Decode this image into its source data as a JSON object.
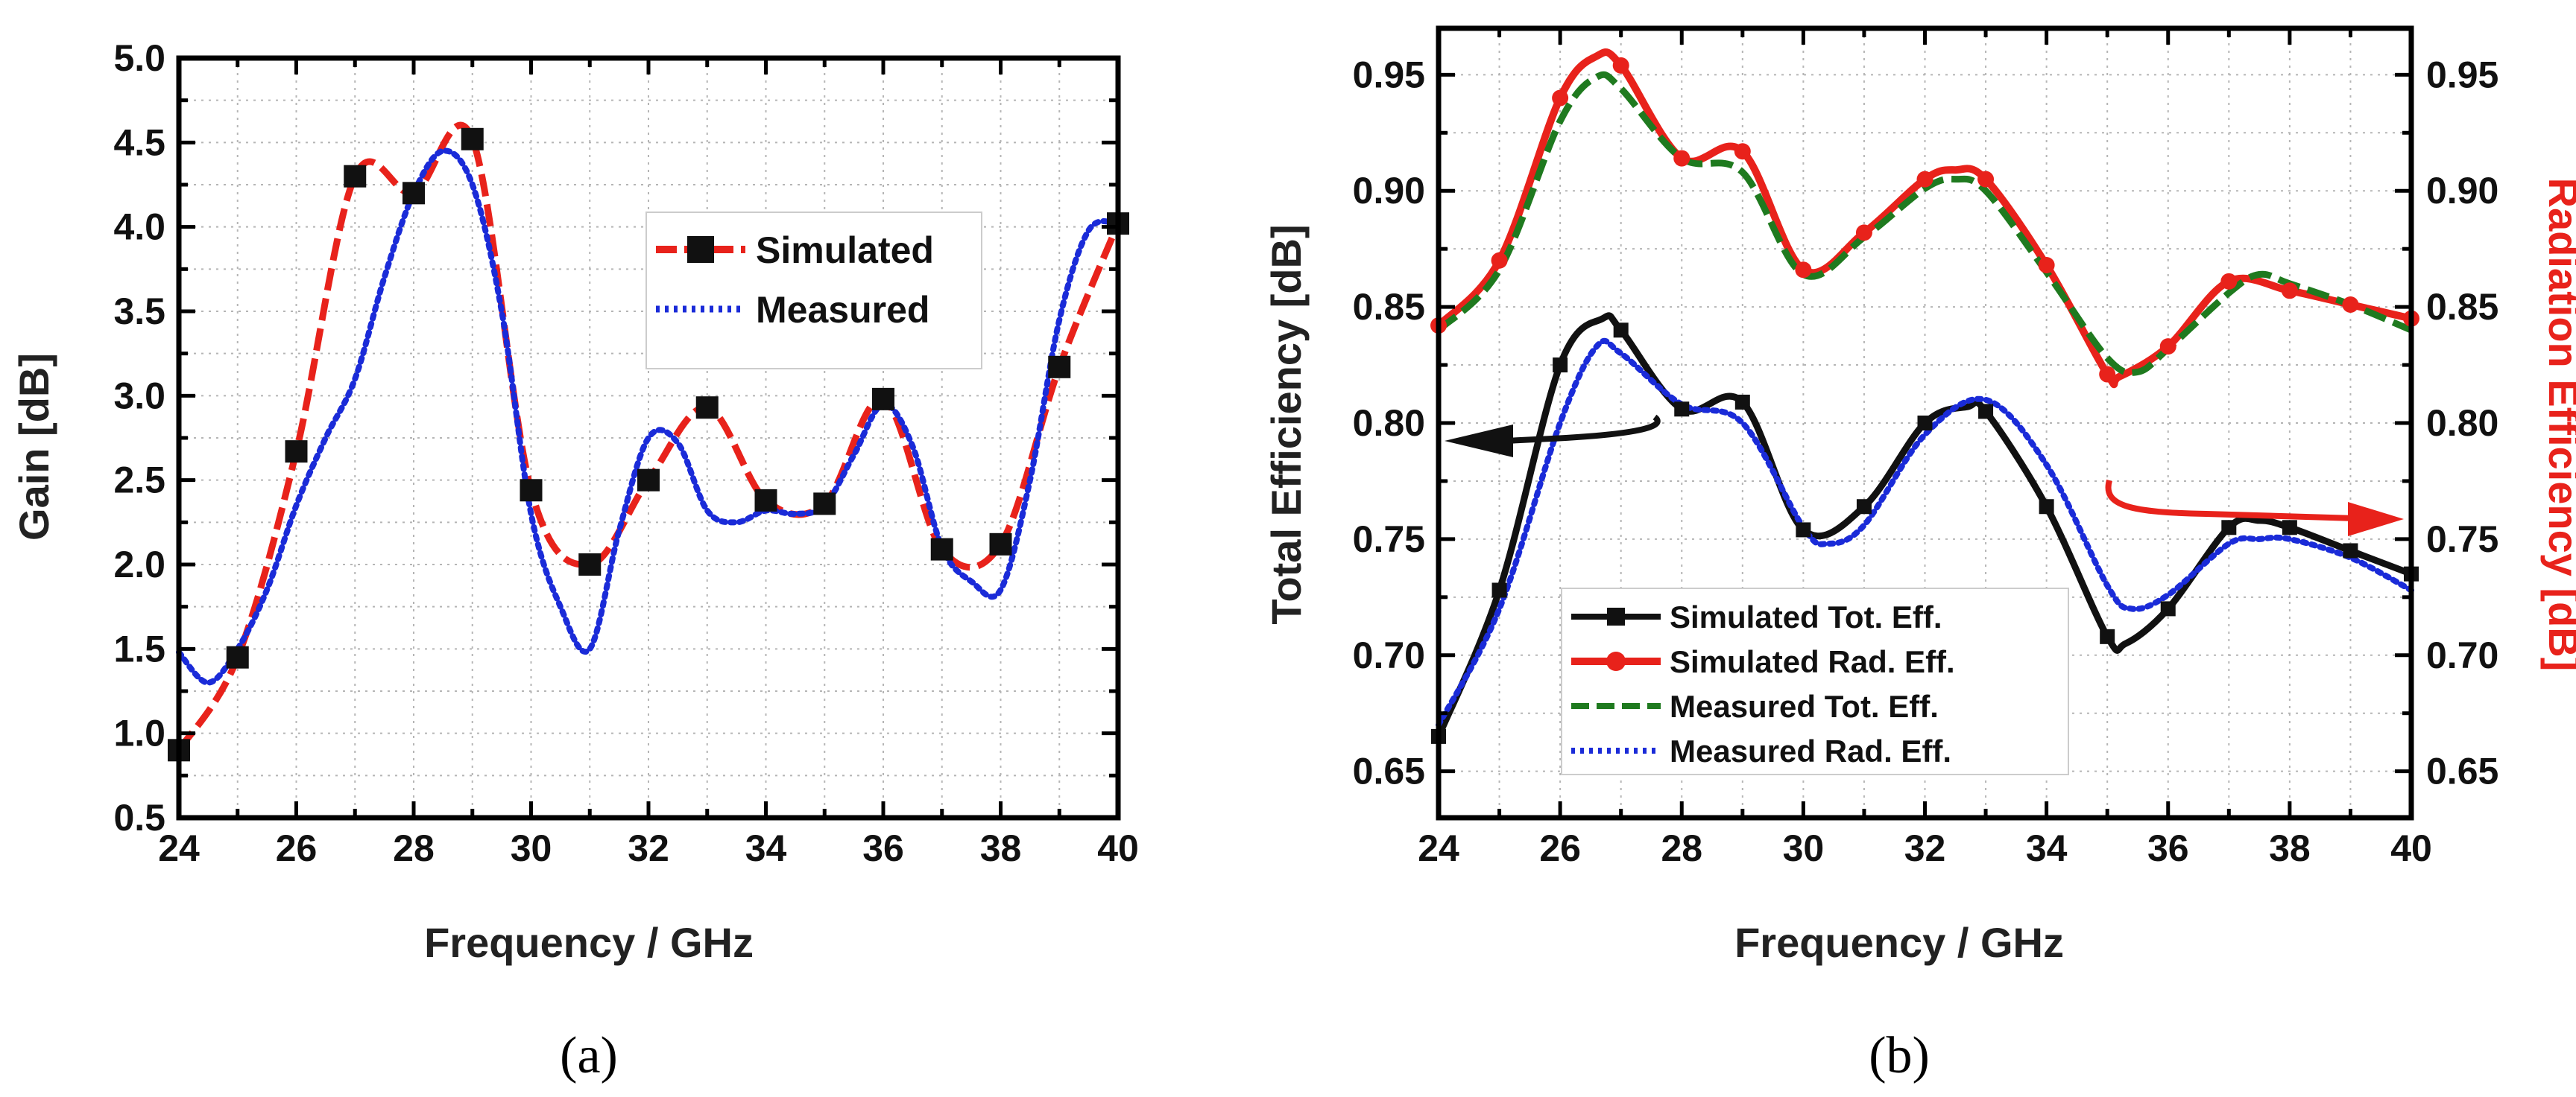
{
  "chart_data": [
    {
      "id": "a",
      "type": "line",
      "panel_label": "(a)",
      "xlabel": "Frequency / GHz",
      "ylabel": "Gain [dB]",
      "xlim": [
        24,
        40
      ],
      "ylim": [
        0.5,
        5.0
      ],
      "xticks": [
        "24",
        "26",
        "28",
        "30",
        "32",
        "34",
        "36",
        "38",
        "40"
      ],
      "yticks": [
        "0.5",
        "1.0",
        "1.5",
        "2.0",
        "2.5",
        "3.0",
        "3.5",
        "4.0",
        "4.5",
        "5.0"
      ],
      "grid": true,
      "legend_position": "top-right",
      "series": [
        {
          "name": "Simulated",
          "color": "#e8221b",
          "style": "dash",
          "marker": "square",
          "marker_color": "#111111",
          "x": [
            24,
            25,
            26,
            27,
            28,
            29,
            30,
            31,
            32,
            33,
            34,
            35,
            36,
            37,
            38,
            39,
            40
          ],
          "values": [
            0.9,
            1.45,
            2.67,
            4.3,
            4.2,
            4.52,
            2.44,
            2.0,
            2.5,
            2.93,
            2.38,
            2.36,
            2.98,
            2.09,
            2.12,
            3.17,
            4.02
          ]
        },
        {
          "name": "Measured",
          "color": "#1a2bd8",
          "style": "dot",
          "x": [
            24,
            24.5,
            25,
            25.5,
            26,
            26.5,
            27,
            27.5,
            28,
            28.5,
            29,
            29.5,
            30,
            30.5,
            31,
            31.5,
            32,
            32.5,
            33,
            33.5,
            34,
            34.5,
            35,
            35.5,
            36,
            36.5,
            37,
            37.5,
            38,
            38.5,
            39,
            39.5,
            40
          ],
          "values": [
            1.48,
            1.3,
            1.5,
            1.85,
            2.35,
            2.75,
            3.1,
            3.7,
            4.2,
            4.45,
            4.25,
            3.5,
            2.3,
            1.75,
            1.5,
            2.2,
            2.75,
            2.72,
            2.32,
            2.25,
            2.32,
            2.3,
            2.35,
            2.65,
            2.95,
            2.7,
            2.1,
            1.9,
            1.85,
            2.5,
            3.45,
            3.98,
            4.02
          ]
        }
      ]
    },
    {
      "id": "b",
      "type": "line",
      "panel_label": "(b)",
      "xlabel": "Frequency / GHz",
      "ylabel": "Total Efficiency [dB]",
      "ylabel_right": "Radiation Efficiency [dB]",
      "ylabel_right_color": "#e8221b",
      "xlim": [
        24,
        40
      ],
      "ylim": [
        0.63,
        0.97
      ],
      "ylim_right": [
        0.63,
        0.97
      ],
      "xticks": [
        "24",
        "26",
        "28",
        "30",
        "32",
        "34",
        "36",
        "38",
        "40"
      ],
      "yticks": [
        "0.65",
        "0.70",
        "0.75",
        "0.80",
        "0.85",
        "0.90",
        "0.95"
      ],
      "yticks_right": [
        "0.65",
        "0.70",
        "0.75",
        "0.80",
        "0.85",
        "0.90",
        "0.95"
      ],
      "grid": true,
      "legend_position": "bottom-center",
      "series": [
        {
          "name": "Simulated Tot. Eff.",
          "color": "#111111",
          "style": "solid",
          "marker": "square",
          "axis": "left",
          "x": [
            24,
            25,
            26,
            26.7,
            27,
            28,
            29,
            30,
            31,
            32,
            32.7,
            33,
            34,
            35,
            35.3,
            36,
            37,
            37.5,
            38,
            39,
            40
          ],
          "values": [
            0.665,
            0.728,
            0.825,
            0.845,
            0.84,
            0.806,
            0.809,
            0.754,
            0.764,
            0.8,
            0.807,
            0.805,
            0.764,
            0.708,
            0.705,
            0.72,
            0.755,
            0.758,
            0.755,
            0.745,
            0.735
          ]
        },
        {
          "name": "Simulated Rad. Eff.",
          "color": "#e8221b",
          "style": "solid",
          "marker": "circle",
          "axis": "right",
          "x": [
            24,
            25,
            26,
            26.6,
            27,
            28,
            29,
            30,
            31,
            32,
            32.5,
            33,
            34,
            35,
            35.2,
            36,
            37,
            38,
            39,
            40
          ],
          "values": [
            0.842,
            0.87,
            0.94,
            0.958,
            0.954,
            0.914,
            0.917,
            0.866,
            0.882,
            0.905,
            0.909,
            0.905,
            0.868,
            0.821,
            0.82,
            0.833,
            0.861,
            0.857,
            0.851,
            0.845
          ]
        },
        {
          "name": "Measured Tot. Eff.",
          "color": "#1f7a1f",
          "style": "dash",
          "axis": "right",
          "x": [
            24,
            25,
            26,
            26.6,
            27,
            28,
            29,
            30,
            31,
            32,
            32.5,
            33,
            34,
            35,
            35.5,
            36,
            37,
            37.5,
            38,
            39,
            40
          ],
          "values": [
            0.84,
            0.866,
            0.93,
            0.949,
            0.944,
            0.914,
            0.908,
            0.864,
            0.88,
            0.901,
            0.905,
            0.9,
            0.865,
            0.828,
            0.822,
            0.832,
            0.856,
            0.864,
            0.86,
            0.851,
            0.84
          ]
        },
        {
          "name": "Measured Rad. Eff.",
          "color": "#1a2bd8",
          "style": "dot",
          "axis": "left",
          "x": [
            24,
            25,
            26,
            26.6,
            27,
            28,
            29,
            30,
            30.4,
            31,
            32,
            33,
            34,
            35,
            35.4,
            36,
            37,
            37.5,
            38,
            39,
            40
          ],
          "values": [
            0.67,
            0.72,
            0.8,
            0.833,
            0.83,
            0.808,
            0.8,
            0.755,
            0.748,
            0.756,
            0.795,
            0.81,
            0.782,
            0.73,
            0.72,
            0.726,
            0.748,
            0.75,
            0.75,
            0.742,
            0.728
          ]
        }
      ],
      "annotations": [
        {
          "type": "arrow",
          "target_axis": "left",
          "color": "#111111"
        },
        {
          "type": "arrow",
          "target_axis": "right",
          "color": "#e8221b"
        }
      ]
    }
  ]
}
